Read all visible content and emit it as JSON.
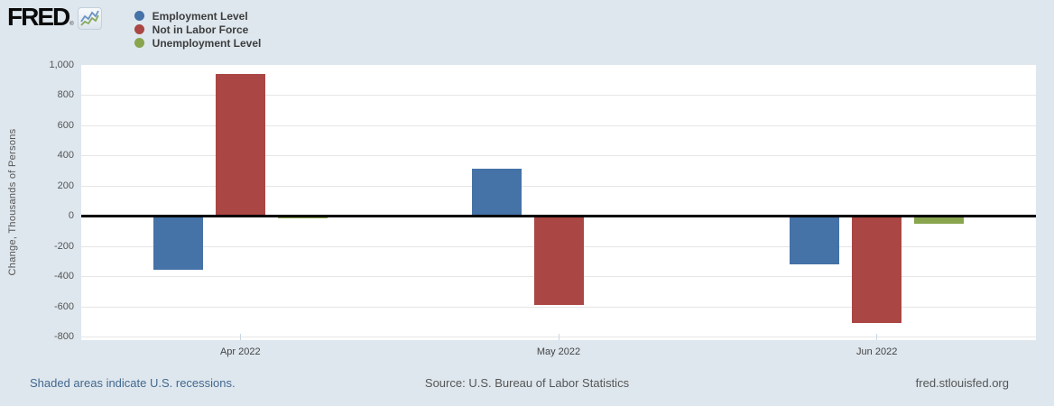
{
  "header": {
    "logo_text": "FRED",
    "logo_registered": "®"
  },
  "legend": [
    {
      "label": "Employment Level",
      "color": "#4572a7"
    },
    {
      "label": "Not in Labor Force",
      "color": "#aa4643"
    },
    {
      "label": "Unemployment Level",
      "color": "#89a54e"
    }
  ],
  "chart_data": {
    "type": "bar",
    "title": "",
    "xlabel": "",
    "ylabel": "Change, Thousands of Persons",
    "categories": [
      "Apr 2022",
      "May 2022",
      "Jun 2022"
    ],
    "series": [
      {
        "name": "Employment Level",
        "color": "#4572a7",
        "values": [
          -360,
          310,
          -320
        ]
      },
      {
        "name": "Not in Labor Force",
        "color": "#aa4643",
        "values": [
          940,
          -590,
          -710
        ]
      },
      {
        "name": "Unemployment Level",
        "color": "#89a54e",
        "values": [
          -20,
          0,
          -50
        ]
      }
    ],
    "ylim": [
      -800,
      1000
    ],
    "ytick_step": 200,
    "ytick_labels": [
      "1,000",
      "800",
      "600",
      "400",
      "200",
      "0",
      "-200",
      "-400",
      "-600",
      "-800"
    ],
    "grid": true,
    "legend_position": "top-left",
    "zero_line": true
  },
  "footer": {
    "recession_note": "Shaded areas indicate U.S. recessions.",
    "source": "Source: U.S. Bureau of Labor Statistics",
    "site": "fred.stlouisfed.org"
  }
}
